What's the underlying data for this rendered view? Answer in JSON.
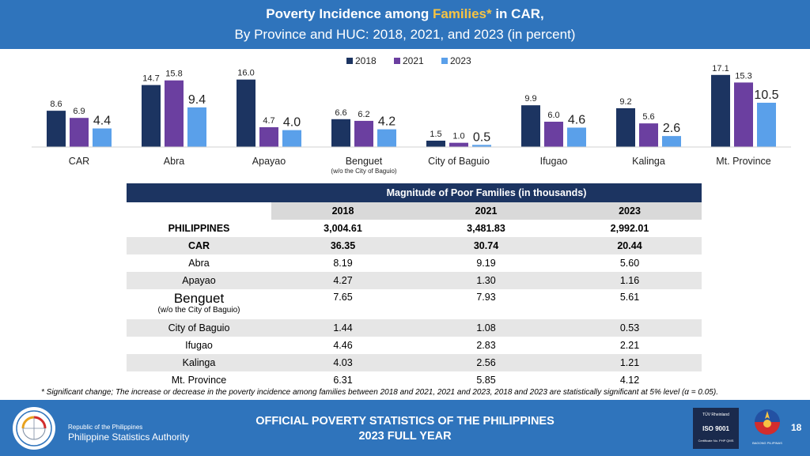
{
  "header": {
    "title_pre": "Poverty Incidence among ",
    "title_highlight": "Families*",
    "title_post": " in CAR,",
    "subtitle": "By Province and HUC: 2018, 2021, and 2023 (in percent)"
  },
  "colors": {
    "s2018": "#1c3461",
    "s2021": "#6b3fa0",
    "s2023": "#5aa0ea",
    "header_bg": "#2f74bc",
    "table_band": "#1c3461"
  },
  "chart_data": {
    "type": "bar",
    "title": "Poverty Incidence among Families* in CAR, By Province and HUC: 2018, 2021, and 2023 (in percent)",
    "categories": [
      "CAR",
      "Abra",
      "Apayao",
      "Benguet",
      "City of Baguio",
      "Ifugao",
      "Kalinga",
      "Mt. Province"
    ],
    "category_sublabels": [
      "",
      "",
      "",
      "(w/o the City of Baguio)",
      "",
      "",
      "",
      ""
    ],
    "series": [
      {
        "name": "2018",
        "values": [
          8.6,
          14.7,
          16.0,
          6.6,
          1.5,
          9.9,
          9.2,
          17.1
        ],
        "labels": [
          "8.6",
          "14.7",
          "16.0",
          "6.6",
          "1.5",
          "9.9",
          "9.2",
          "17.1"
        ]
      },
      {
        "name": "2021",
        "values": [
          6.9,
          15.8,
          4.7,
          6.2,
          1.0,
          6.0,
          5.6,
          15.3
        ],
        "labels": [
          "6.9",
          "15.8",
          "4.7",
          "6.2",
          "1.0",
          "6.0",
          "5.6",
          "15.3"
        ]
      },
      {
        "name": "2023",
        "values": [
          4.4,
          9.4,
          4.0,
          4.2,
          0.5,
          4.6,
          2.6,
          10.5
        ],
        "labels": [
          "4.4",
          "9.4",
          "4.0",
          "4.2",
          "0.5",
          "4.6",
          "2.6",
          "10.5"
        ]
      }
    ],
    "ylim": [
      0,
      18
    ],
    "grid": false,
    "legend": "top-center"
  },
  "table": {
    "title": "Magnitude of Poor Families (in thousands)",
    "years": [
      "2018",
      "2021",
      "2023"
    ],
    "rows": [
      {
        "label": "PHILIPPINES",
        "v": [
          "3,004.61",
          "3,481.83",
          "2,992.01"
        ]
      },
      {
        "label": "CAR",
        "v": [
          "36.35",
          "30.74",
          "20.44"
        ]
      },
      {
        "label": "Abra",
        "v": [
          "8.19",
          "9.19",
          "5.60"
        ]
      },
      {
        "label": "Apayao",
        "v": [
          "4.27",
          "1.30",
          "1.16"
        ]
      },
      {
        "label": "Benguet",
        "sublabel": "(w/o the City of Baguio)",
        "v": [
          "7.65",
          "7.93",
          "5.61"
        ]
      },
      {
        "label": "City of Baguio",
        "v": [
          "1.44",
          "1.08",
          "0.53"
        ]
      },
      {
        "label": "Ifugao",
        "v": [
          "4.46",
          "2.83",
          "2.21"
        ]
      },
      {
        "label": "Kalinga",
        "v": [
          "4.03",
          "2.56",
          "1.21"
        ]
      },
      {
        "label": "Mt. Province",
        "v": [
          "6.31",
          "5.85",
          "4.12"
        ]
      }
    ]
  },
  "footnote": "* Significant change; The increase or decrease in the poverty incidence among families between 2018 and 2021, 2021 and 2023, 2018 and 2023 are statistically significant at 5% level (α = 0.05).",
  "footer": {
    "org_small": "Republic of the Philippines",
    "org_name": "Philippine Statistics Authority",
    "title_line1": "OFFICIAL POVERTY STATISTICS OF THE PHILIPPINES",
    "title_line2": "2023 FULL YEAR",
    "iso_top": "TÜV Rheinland",
    "iso_main": "ISO 9001",
    "iso_cert": "Certificate No. PHP QMS",
    "bagong_label": "BAGONG PILIPINAS",
    "page_number": "18"
  }
}
